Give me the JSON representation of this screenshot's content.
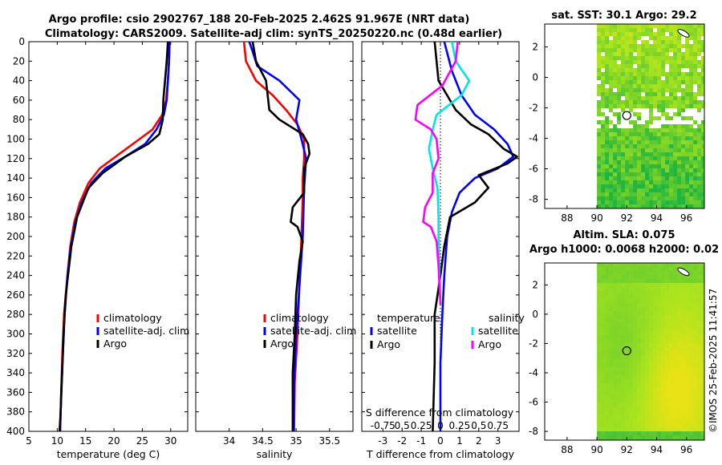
{
  "header": {
    "title_line1": "Argo profile: csio 2902767_188 20-Feb-2025 2.462S 91.967E (NRT data)",
    "title_line2": "Climatology: CARS2009. Satellite-adj clim: synTS_20250220.nc (0.48d earlier)"
  },
  "colors": {
    "climatology": "#ff0000",
    "satellite_adj": "#0000ff",
    "argo": "#000000",
    "sat_salinity": "#00e5e5",
    "argo_salinity": "#ff00ff"
  },
  "depth_axis": {
    "ylim": [
      0,
      400
    ],
    "ticks": [
      "0",
      "20",
      "40",
      "60",
      "80",
      "100",
      "120",
      "140",
      "160",
      "180",
      "200",
      "220",
      "240",
      "260",
      "280",
      "300",
      "320",
      "340",
      "360",
      "380",
      "400"
    ]
  },
  "chart_data": [
    {
      "type": "line",
      "name": "temperature",
      "xlabel": "temperature (deg C)",
      "xlim": [
        5,
        33
      ],
      "xticks": [
        "5",
        "10",
        "15",
        "20",
        "25",
        "30"
      ],
      "ylim": [
        400,
        0
      ],
      "legend": [
        "climatology",
        "satellite-adj. clim",
        "Argo"
      ],
      "series": [
        {
          "name": "climatology",
          "points": [
            [
              29.8,
              0
            ],
            [
              29.7,
              20
            ],
            [
              29.5,
              40
            ],
            [
              29.2,
              60
            ],
            [
              28.5,
              75
            ],
            [
              26.8,
              90
            ],
            [
              24.5,
              100
            ],
            [
              21,
              115
            ],
            [
              17.5,
              130
            ],
            [
              15.5,
              145
            ],
            [
              14,
              165
            ],
            [
              13,
              185
            ],
            [
              12.3,
              210
            ],
            [
              11.8,
              240
            ],
            [
              11.2,
              280
            ],
            [
              10.9,
              320
            ],
            [
              10.7,
              360
            ],
            [
              10.5,
              400
            ]
          ]
        },
        {
          "name": "satellite-adj. clim",
          "points": [
            [
              29.8,
              0
            ],
            [
              29.7,
              20
            ],
            [
              29.5,
              40
            ],
            [
              29.3,
              60
            ],
            [
              28.8,
              75
            ],
            [
              27.5,
              90
            ],
            [
              25.5,
              105
            ],
            [
              22,
              118
            ],
            [
              18.5,
              130
            ],
            [
              16,
              145
            ],
            [
              14.3,
              165
            ],
            [
              13.2,
              185
            ],
            [
              12.4,
              210
            ],
            [
              11.8,
              240
            ],
            [
              11.3,
              280
            ],
            [
              11,
              320
            ],
            [
              10.7,
              360
            ],
            [
              10.5,
              400
            ]
          ]
        },
        {
          "name": "Argo",
          "points": [
            [
              29.5,
              0
            ],
            [
              29.3,
              20
            ],
            [
              29,
              40
            ],
            [
              28.7,
              60
            ],
            [
              28.6,
              80
            ],
            [
              28,
              95
            ],
            [
              26,
              105
            ],
            [
              22,
              118
            ],
            [
              18,
              135
            ],
            [
              15.5,
              150
            ],
            [
              14.5,
              165
            ],
            [
              13.5,
              180
            ],
            [
              13,
              195
            ],
            [
              12.5,
              210
            ],
            [
              12,
              235
            ],
            [
              11.5,
              260
            ],
            [
              11.2,
              290
            ],
            [
              11,
              320
            ],
            [
              10.8,
              350
            ],
            [
              10.6,
              380
            ],
            [
              10.4,
              400
            ]
          ]
        }
      ]
    },
    {
      "type": "line",
      "name": "salinity",
      "xlabel": "salinity",
      "xlim": [
        33.5,
        35.85
      ],
      "xticks": [
        "34",
        "34.5",
        "35",
        "35.5"
      ],
      "ylim": [
        400,
        0
      ],
      "legend": [
        "climatology",
        "satellite-adj. clim",
        "Argo"
      ],
      "series": [
        {
          "name": "climatology",
          "points": [
            [
              34.22,
              0
            ],
            [
              34.25,
              20
            ],
            [
              34.4,
              40
            ],
            [
              34.65,
              55
            ],
            [
              34.85,
              70
            ],
            [
              35.02,
              85
            ],
            [
              35.12,
              100
            ],
            [
              35.12,
              120
            ],
            [
              35.1,
              140
            ],
            [
              35.1,
              160
            ],
            [
              35.08,
              200
            ],
            [
              35.05,
              250
            ],
            [
              35.02,
              300
            ],
            [
              34.98,
              350
            ],
            [
              34.97,
              400
            ]
          ]
        },
        {
          "name": "satellite-adj. clim",
          "points": [
            [
              34.3,
              0
            ],
            [
              34.35,
              10
            ],
            [
              34.42,
              25
            ],
            [
              34.75,
              40
            ],
            [
              35.05,
              60
            ],
            [
              35,
              80
            ],
            [
              35.08,
              100
            ],
            [
              35.15,
              120
            ],
            [
              35.12,
              150
            ],
            [
              35.1,
              200
            ],
            [
              35.05,
              250
            ],
            [
              35,
              300
            ],
            [
              34.97,
              350
            ],
            [
              34.96,
              400
            ]
          ]
        },
        {
          "name": "Argo",
          "points": [
            [
              34.35,
              0
            ],
            [
              34.4,
              20
            ],
            [
              34.55,
              40
            ],
            [
              34.6,
              70
            ],
            [
              34.75,
              80
            ],
            [
              35.1,
              95
            ],
            [
              35.18,
              105
            ],
            [
              35.2,
              115
            ],
            [
              35.12,
              130
            ],
            [
              35.12,
              155
            ],
            [
              34.95,
              170
            ],
            [
              34.92,
              185
            ],
            [
              35.02,
              190
            ],
            [
              35.1,
              205
            ],
            [
              35.05,
              225
            ],
            [
              35,
              260
            ],
            [
              34.98,
              300
            ],
            [
              34.95,
              340
            ],
            [
              34.95,
              400
            ]
          ]
        }
      ]
    },
    {
      "type": "line",
      "name": "differences",
      "xlabel": "T difference from climatology",
      "xlim": [
        -4.1,
        4.1
      ],
      "xticks": [
        "-3",
        "-2",
        "-1",
        "0",
        "1",
        "2",
        "3"
      ],
      "secondary_axis_label": "S difference from climatology",
      "secondary_xticks": [
        "-0.75",
        "0.5",
        "0.25",
        "0",
        "0.25",
        "0.5",
        "0.75"
      ],
      "zero_line": 0,
      "ylim": [
        400,
        0
      ],
      "legend": {
        "temperature": [
          "satellite",
          "Argo"
        ],
        "salinity": [
          "satellite",
          "Argo"
        ]
      },
      "series": [
        {
          "name": "temperature satellite",
          "points": [
            [
              0.2,
              0
            ],
            [
              0.6,
              30
            ],
            [
              1.1,
              55
            ],
            [
              1.8,
              75
            ],
            [
              2.8,
              90
            ],
            [
              3.5,
              105
            ],
            [
              3.8,
              118
            ],
            [
              3,
              130
            ],
            [
              1.8,
              140
            ],
            [
              1,
              155
            ],
            [
              0.6,
              175
            ],
            [
              0.35,
              200
            ],
            [
              0.2,
              240
            ],
            [
              0.1,
              280
            ],
            [
              0,
              330
            ],
            [
              0,
              400
            ]
          ]
        },
        {
          "name": "temperature Argo",
          "points": [
            [
              -0.3,
              0
            ],
            [
              -0.2,
              20
            ],
            [
              -0.1,
              40
            ],
            [
              0.8,
              70
            ],
            [
              1.6,
              85
            ],
            [
              2.5,
              95
            ],
            [
              3.3,
              110
            ],
            [
              4,
              118
            ],
            [
              3.5,
              125
            ],
            [
              2,
              137
            ],
            [
              2.5,
              150
            ],
            [
              1.8,
              165
            ],
            [
              0.5,
              180
            ],
            [
              0.35,
              195
            ],
            [
              0.2,
              210
            ],
            [
              0,
              240
            ],
            [
              -0.3,
              280
            ],
            [
              -0.3,
              330
            ],
            [
              -0.4,
              400
            ]
          ]
        },
        {
          "name": "salinity satellite",
          "points": [
            [
              0.6,
              0
            ],
            [
              0.8,
              20
            ],
            [
              1.5,
              40
            ],
            [
              1.1,
              55
            ],
            [
              -0.2,
              75
            ],
            [
              -0.4,
              90
            ],
            [
              -0.6,
              110
            ],
            [
              -0.4,
              130
            ],
            [
              -0.15,
              150
            ],
            [
              -0.1,
              180
            ],
            [
              -0.1,
              200
            ],
            [
              -0.05,
              240
            ],
            [
              0,
              270
            ]
          ]
        },
        {
          "name": "salinity Argo",
          "points": [
            [
              0.9,
              0
            ],
            [
              0.8,
              20
            ],
            [
              0.1,
              45
            ],
            [
              -1.2,
              65
            ],
            [
              -1.3,
              80
            ],
            [
              -0.5,
              90
            ],
            [
              -0.2,
              100
            ],
            [
              -0.1,
              120
            ],
            [
              -0.4,
              135
            ],
            [
              -0.4,
              155
            ],
            [
              -0.8,
              170
            ],
            [
              -0.9,
              185
            ],
            [
              -0.5,
              190
            ],
            [
              -0.2,
              205
            ],
            [
              -0.1,
              230
            ],
            [
              0,
              270
            ]
          ]
        }
      ]
    },
    {
      "type": "heatmap",
      "name": "satellite SST map",
      "title": "sat. SST: 30.1 Argo: 29.2",
      "xlim": [
        86.5,
        97.2
      ],
      "ylim": [
        -8.6,
        3.5
      ],
      "xticks": [
        "88",
        "90",
        "92",
        "94",
        "96"
      ],
      "yticks": [
        "2",
        "0",
        "-2",
        "-4",
        "-6",
        "-8"
      ],
      "argo_position": [
        92,
        -2.5
      ],
      "data_x_start": 90
    },
    {
      "type": "heatmap",
      "name": "altimetry SLA map",
      "title": "Altim. SLA: 0.075",
      "subtitle": "Argo h1000: 0.0068 h2000: 0.02",
      "xlim": [
        86.5,
        97.2
      ],
      "ylim": [
        -8.6,
        3.5
      ],
      "xticks": [
        "88",
        "90",
        "92",
        "94",
        "96"
      ],
      "yticks": [
        "2",
        "0",
        "-2",
        "-4",
        "-6",
        "-8"
      ],
      "argo_position": [
        92,
        -2.5
      ],
      "data_x_start": 90
    }
  ],
  "footer": {
    "stamp": "©IMOS 25-Feb-2025 11:41:57"
  }
}
